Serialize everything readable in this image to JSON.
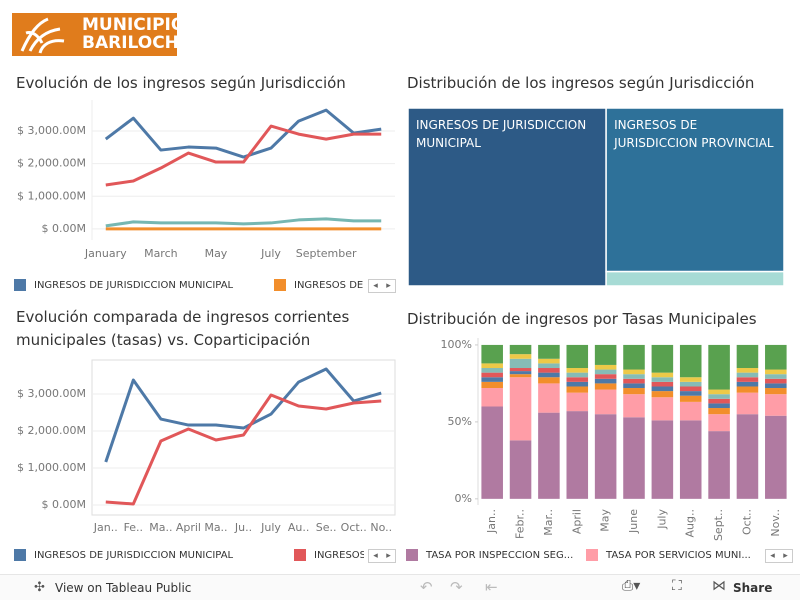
{
  "header": {
    "logo": [
      "MUNICIPIO",
      "BARILOCHE"
    ]
  },
  "toolbar": {
    "view": "View on Tableau Public",
    "share": "Share"
  },
  "chart_data": [
    {
      "type": "line",
      "title": "Evolución de los ingresos según Jurisdicción",
      "categories": [
        "January",
        null,
        "March",
        null,
        "May",
        null,
        "July",
        null,
        "September",
        null,
        null
      ],
      "ylim": [
        -340,
        3950
      ],
      "yticks": [
        {
          "value": 0,
          "label": "$ 0.00M"
        },
        {
          "value": 1000,
          "label": "$ 1,000.00M"
        },
        {
          "value": 2000,
          "label": "$ 2,000.00M"
        },
        {
          "value": 3000,
          "label": "$ 3,000.00M"
        }
      ],
      "grid": true,
      "series": [
        {
          "name": "INGRESOS DE JURISDICCION MUNICIPAL",
          "color": "#4e79a7",
          "values": [
            2752,
            3394,
            2416,
            2508,
            2477,
            2202,
            2477,
            3303,
            3639,
            2936,
            3058
          ]
        },
        {
          "name": "INGRESOS DE",
          "color": "#f28e2b",
          "values": [
            0,
            0,
            0,
            0,
            0,
            0,
            0,
            0,
            0,
            0,
            0
          ]
        },
        {
          "color": "#e15759",
          "values": [
            1346,
            1468,
            1865,
            2324,
            2049,
            2049,
            3150,
            2905,
            2752,
            2905,
            2905
          ]
        },
        {
          "color": "#76b7b2",
          "values": [
            92,
            214,
            183,
            183,
            183,
            153,
            183,
            275,
            306,
            245,
            245
          ]
        }
      ]
    },
    {
      "type": "treemap",
      "title": "Distribución de los ingresos según Jurisdicción",
      "labels": [
        "INGRESOS DE JURISDICCION MUNICIPAL",
        "INGRESOS DE JURISDICCION PROVINCIAL",
        null
      ],
      "values": [
        31162,
        25718,
        2262
      ],
      "colors": [
        "#2d5a86",
        "#2e7199",
        "#a7dbd5"
      ]
    },
    {
      "type": "line",
      "title": "Evolución comparada de ingresos corrientes municipales (tasas) vs. Coparticipación",
      "categories": [
        "Jan..",
        "Fe..",
        "Ma..",
        "April",
        "Ma..",
        "Ju..",
        "July",
        "Au..",
        "Se..",
        "Oct..",
        "No.."
      ],
      "ylim": [
        -270,
        3920
      ],
      "yticks": [
        {
          "value": 0,
          "label": "$ 0.00M"
        },
        {
          "value": 1000,
          "label": "$ 1,000.00M"
        },
        {
          "value": 2000,
          "label": "$ 2,000.00M"
        },
        {
          "value": 3000,
          "label": "$ 3,000.00M"
        }
      ],
      "grid": true,
      "series": [
        {
          "name": "INGRESOS DE JURISDICCION MUNICIPAL",
          "color": "#4e79a7",
          "values": [
            1162,
            3378,
            2324,
            2162,
            2162,
            2081,
            2459,
            3324,
            3676,
            2811,
            3027
          ]
        },
        {
          "name": "INGRESOS",
          "color": "#e15759",
          "values": [
            81,
            27,
            1730,
            2054,
            1757,
            1892,
            2973,
            2676,
            2595,
            2757,
            2811
          ]
        }
      ]
    },
    {
      "type": "stacked100",
      "title": "Distribución de ingresos por Tasas Municipales",
      "categories": [
        "Jan..",
        "Febr..",
        "Mar..",
        "April",
        "May",
        "June",
        "July",
        "Aug..",
        "Sept..",
        "Oct..",
        "Nov.."
      ],
      "ylim": [
        -4,
        104.5
      ],
      "yticks": [
        {
          "value": 0,
          "label": "0%"
        },
        {
          "value": 50,
          "label": "50%"
        },
        {
          "value": 100,
          "label": "100%"
        }
      ],
      "series": [
        {
          "name": "TASA POR INSPECCION SEG...",
          "color": "#b07aa1",
          "values": [
            60,
            38,
            56,
            57,
            55,
            53,
            51,
            51,
            44,
            55,
            54
          ]
        },
        {
          "name": "TASA POR SERVICIOS MUNI...",
          "color": "#ff9da7",
          "values": [
            12,
            41,
            19,
            12,
            16,
            15,
            15,
            12,
            11,
            14,
            14
          ]
        },
        {
          "color": "#f28e2b",
          "values": [
            4,
            2,
            4,
            4,
            4,
            4,
            4,
            4,
            4,
            4,
            4
          ]
        },
        {
          "color": "#4e79a7",
          "values": [
            3,
            2,
            3,
            3,
            3,
            3,
            3,
            3,
            3,
            3,
            3
          ]
        },
        {
          "color": "#e15759",
          "values": [
            3,
            2,
            3,
            3,
            3,
            3,
            3,
            3,
            3,
            3,
            3
          ]
        },
        {
          "color": "#86bcb6",
          "values": [
            3,
            6,
            3,
            3,
            3,
            3,
            3,
            3,
            3,
            3,
            3
          ]
        },
        {
          "color": "#edc948",
          "values": [
            3,
            3,
            3,
            3,
            3,
            3,
            3,
            3,
            3,
            3,
            3
          ]
        },
        {
          "color": "#59a14f",
          "values": [
            12,
            6,
            9,
            15,
            13,
            16,
            18,
            21,
            29,
            15,
            16
          ]
        }
      ]
    }
  ]
}
